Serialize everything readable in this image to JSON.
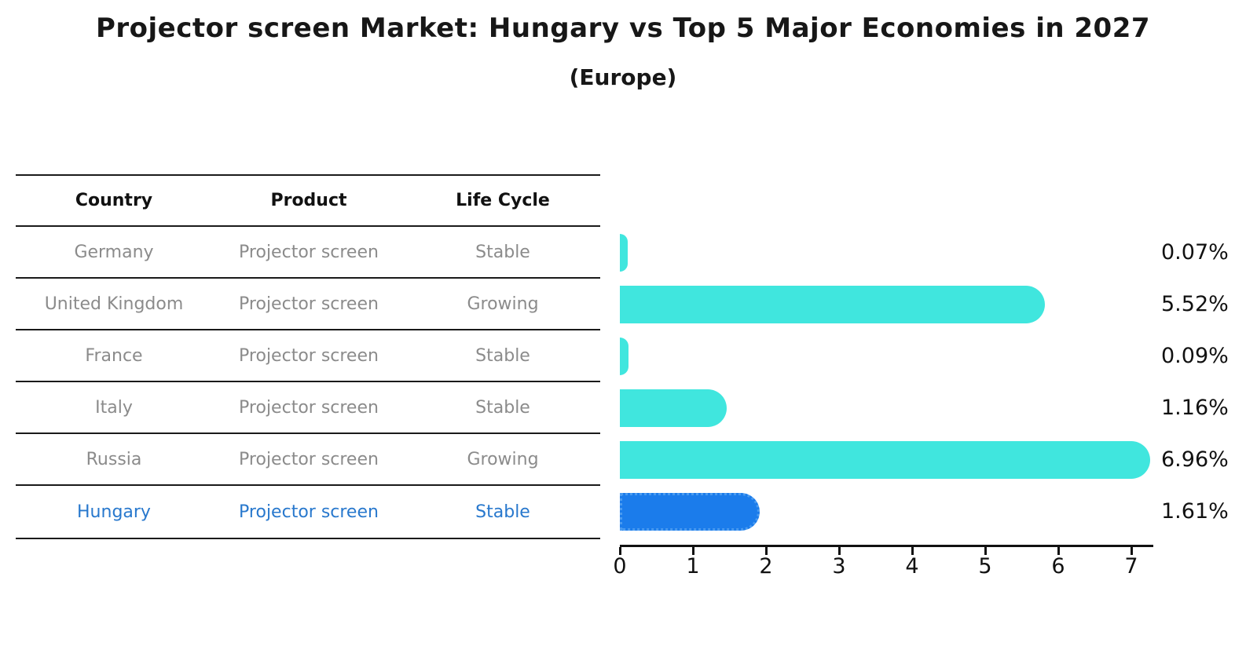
{
  "title": "Projector screen Market: Hungary vs Top 5 Major Economies in 2027",
  "subtitle": "(Europe)",
  "table": {
    "headers": [
      "Country",
      "Product",
      "Life Cycle"
    ],
    "rows": [
      {
        "country": "Germany",
        "product": "Projector screen",
        "life_cycle": "Stable",
        "highlighted": false
      },
      {
        "country": "United Kingdom",
        "product": "Projector screen",
        "life_cycle": "Growing",
        "highlighted": false
      },
      {
        "country": "France",
        "product": "Projector screen",
        "life_cycle": "Stable",
        "highlighted": false
      },
      {
        "country": "Italy",
        "product": "Projector screen",
        "life_cycle": "Stable",
        "highlighted": false
      },
      {
        "country": "Russia",
        "product": "Projector screen",
        "life_cycle": "Growing",
        "highlighted": false
      },
      {
        "country": "Hungary",
        "product": "Projector screen",
        "life_cycle": "Stable",
        "highlighted": true
      }
    ]
  },
  "chart_data": {
    "type": "bar",
    "orientation": "horizontal",
    "title": "Projector screen Market: Hungary vs Top 5 Major Economies in 2027",
    "subtitle": "(Europe)",
    "categories": [
      "Germany",
      "United Kingdom",
      "France",
      "Italy",
      "Russia",
      "Hungary"
    ],
    "values": [
      0.07,
      5.52,
      0.09,
      1.16,
      6.96,
      1.61
    ],
    "value_labels": [
      "0.07%",
      "5.52%",
      "0.09%",
      "1.16%",
      "6.96%",
      "1.61%"
    ],
    "xlabel": "",
    "ylabel": "",
    "xlim": [
      0,
      7.3
    ],
    "x_ticks": [
      0,
      1,
      2,
      3,
      4,
      5,
      6,
      7
    ],
    "grid": false,
    "legend": false,
    "bar_color": "#40e6de",
    "highlight_color": "#1b7ceb",
    "highlight_border_color": "#4a9bf0",
    "highlight_category": "Hungary"
  },
  "colors": {
    "title": "#171717",
    "table_line": "#1a1a1a",
    "table_text": "#8b8b8b",
    "highlight_text": "#2878cd",
    "axis": "#111111"
  }
}
